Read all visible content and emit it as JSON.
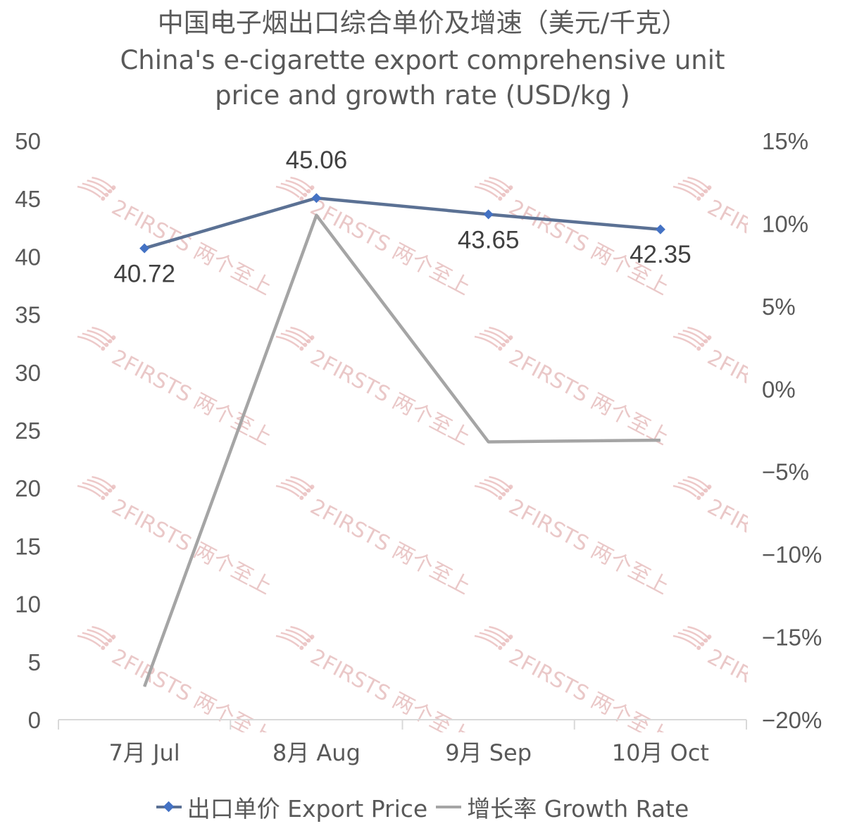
{
  "title": {
    "cn": "中国电子烟出口综合单价及增速（美元/千克）",
    "en_line1": "China's e-cigarette export comprehensive unit",
    "en_line2": "price and growth rate (USD/kg )"
  },
  "watermark": "2FIRSTS 两个至上",
  "colors": {
    "price_line": "#5b7194",
    "price_marker": "#4472c4",
    "growth_line": "#a5a5a5",
    "axis": "#d9d9d9"
  },
  "chart_data": {
    "type": "line",
    "categories": [
      "7月 Jul",
      "8月 Aug",
      "9月 Sep",
      "10月 Oct"
    ],
    "series": [
      {
        "name": "出口单价 Export Price",
        "axis": "left",
        "values": [
          40.72,
          45.06,
          43.65,
          42.35
        ],
        "data_labels": [
          "40.72",
          "45.06",
          "43.65",
          "42.35"
        ],
        "marker": "diamond"
      },
      {
        "name": "增长率 Growth Rate",
        "axis": "right",
        "values": [
          -18.0,
          10.5,
          -3.2,
          -3.1
        ]
      }
    ],
    "y_left": {
      "min": 0,
      "max": 50,
      "step": 5,
      "ticks": [
        "0",
        "5",
        "10",
        "15",
        "20",
        "25",
        "30",
        "35",
        "40",
        "45",
        "50"
      ]
    },
    "y_right": {
      "min": -20,
      "max": 15,
      "step": 5,
      "unit": "%",
      "ticks": [
        "−20%",
        "−15%",
        "−10%",
        "−5%",
        "0%",
        "5%",
        "10%",
        "15%"
      ]
    },
    "grid": false,
    "legend_position": "bottom"
  }
}
